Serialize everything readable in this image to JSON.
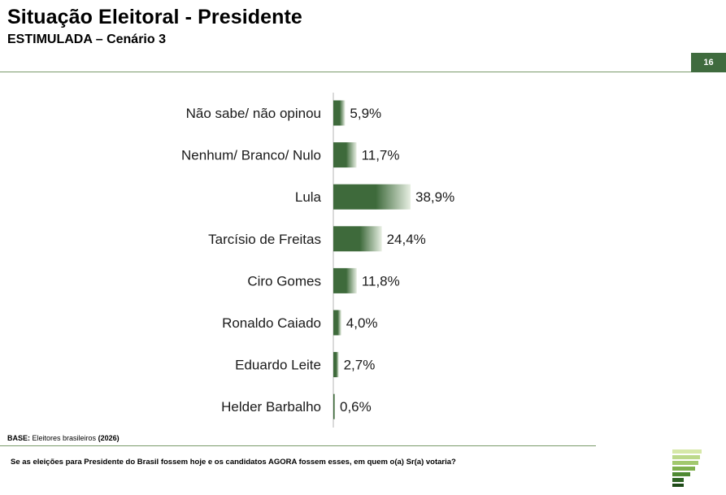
{
  "header": {
    "title": "Situação Eleitoral - Presidente",
    "subtitle": "ESTIMULADA – Cenário 3",
    "page_number": "16"
  },
  "colors": {
    "accent": "#3f6b3e",
    "bar_dark": "#3e6a3b",
    "bar_light": "#e8efe3",
    "rule": "#7a9a6a"
  },
  "chart_data": {
    "type": "bar",
    "orientation": "horizontal",
    "title": "Situação Eleitoral - Presidente",
    "xlabel": "",
    "ylabel": "",
    "xlim": [
      0,
      100
    ],
    "grid": false,
    "legend": "none",
    "categories": [
      "Não sabe/ não opinou",
      "Nenhum/ Branco/ Nulo",
      "Lula",
      "Tarcísio de Freitas",
      "Ciro Gomes",
      "Ronaldo Caiado",
      "Eduardo Leite",
      "Helder Barbalho"
    ],
    "values": [
      5.9,
      11.7,
      38.9,
      24.4,
      11.8,
      4.0,
      2.7,
      0.6
    ],
    "value_labels": [
      "5,9%",
      "11,7%",
      "38,9%",
      "24,4%",
      "11,8%",
      "4,0%",
      "2,7%",
      "0,6%"
    ]
  },
  "footer": {
    "base_label": "BASE:",
    "base_text": "Eleitores brasileiros",
    "base_year": "(2026)",
    "question": "Se as eleições para Presidente do Brasil fossem hoje e os candidatos AGORA fossem esses, em quem o(a) Sr(a) votaria?"
  }
}
